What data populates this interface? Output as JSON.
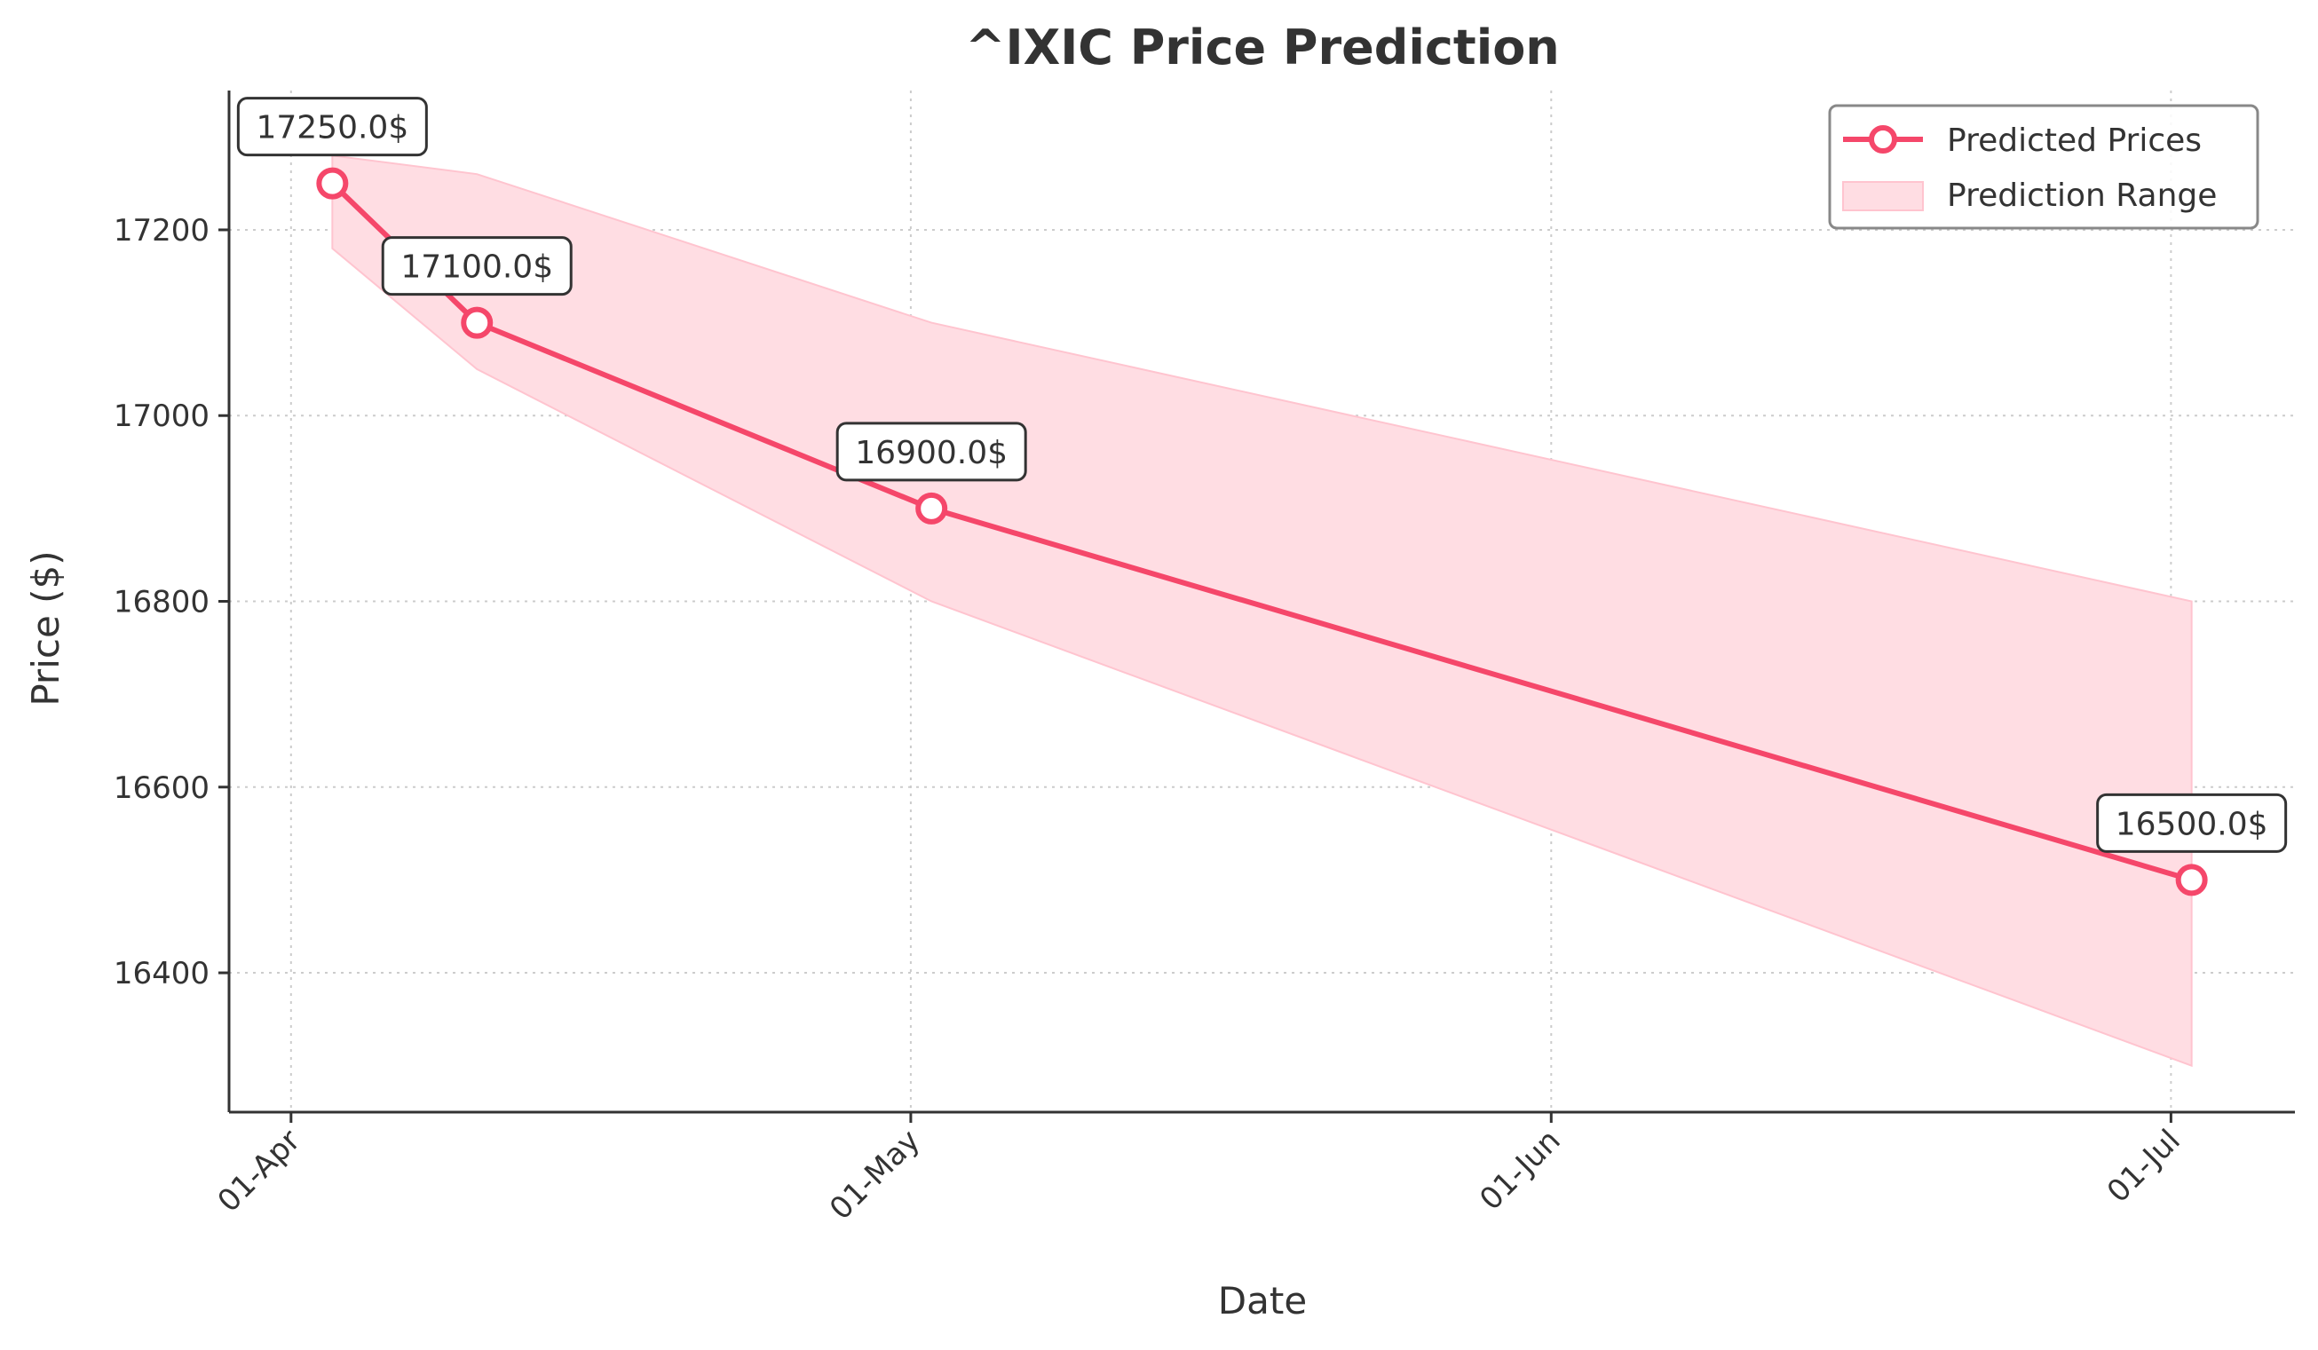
{
  "chart_data": {
    "type": "line",
    "title": "^IXIC Price Prediction",
    "xlabel": "Date",
    "ylabel": "Price ($)",
    "x_ticks": [
      {
        "date": "2024-04-01",
        "label": "01-Apr"
      },
      {
        "date": "2024-05-01",
        "label": "01-May"
      },
      {
        "date": "2024-06-01",
        "label": "01-Jun"
      },
      {
        "date": "2024-07-01",
        "label": "01-Jul"
      }
    ],
    "y_ticks": [
      16400,
      16600,
      16800,
      17000,
      17200
    ],
    "xlim": [
      "2024-03-29",
      "2024-07-07"
    ],
    "ylim": [
      16250,
      17350
    ],
    "grid": true,
    "legend_position": "top-right",
    "series": [
      {
        "name": "Predicted Prices",
        "color": "#f5476a",
        "marker": "circle",
        "x": [
          "2024-04-03",
          "2024-04-10",
          "2024-05-02",
          "2024-07-02"
        ],
        "y": [
          17250,
          17100,
          16900,
          16500
        ],
        "labels": [
          "17250.0$",
          "17100.0$",
          "16900.0$",
          "16500.0$"
        ]
      },
      {
        "name": "Prediction Range",
        "color": "#ffdde3",
        "type": "area",
        "x": [
          "2024-04-03",
          "2024-04-10",
          "2024-05-02",
          "2024-07-02"
        ],
        "upper": [
          17280,
          17260,
          17100,
          16800
        ],
        "lower": [
          17180,
          17050,
          16800,
          16300
        ]
      }
    ]
  }
}
